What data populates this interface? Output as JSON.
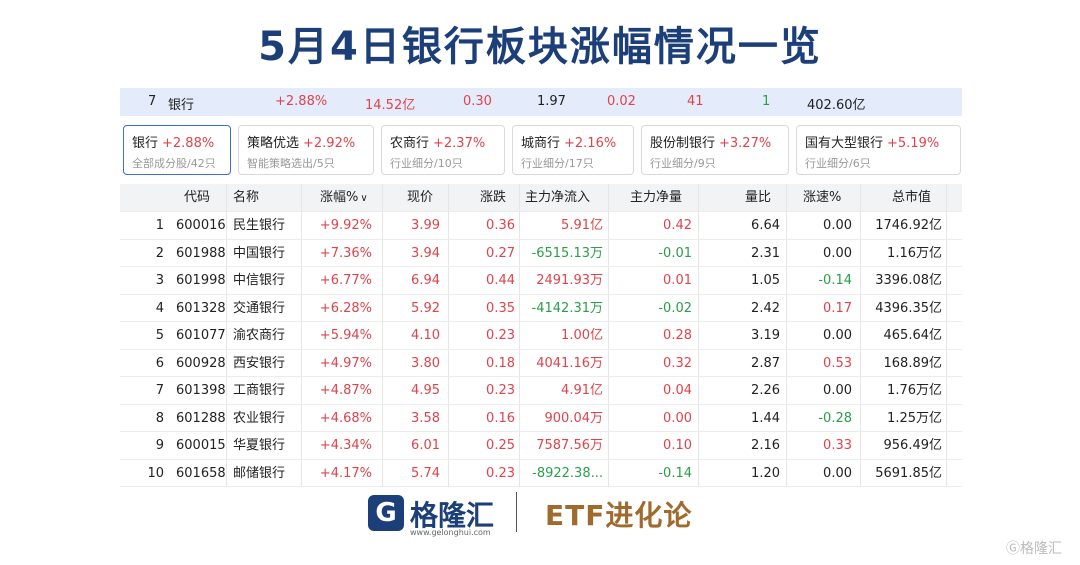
{
  "title": "5月4日银行板块涨幅情况一览",
  "sector_summary": {
    "rank": "7",
    "name": "银行",
    "change_pct": "+2.88%",
    "amount": "14.52亿",
    "v1": "0.30",
    "v2": "1.97",
    "v3": "0.02",
    "v4": "41",
    "v5": "1",
    "v6": "402.60亿"
  },
  "chips": [
    {
      "name": "银行",
      "pct": "+2.88%",
      "sub": "全部成分股/42只"
    },
    {
      "name": "策略优选",
      "pct": "+2.92%",
      "sub": "智能策略选出/5只"
    },
    {
      "name": "农商行",
      "pct": "+2.37%",
      "sub": "行业细分/10只"
    },
    {
      "name": "城商行",
      "pct": "+2.16%",
      "sub": "行业细分/17只"
    },
    {
      "name": "股份制银行",
      "pct": "+3.27%",
      "sub": "行业细分/9只"
    },
    {
      "name": "国有大型银行",
      "pct": "+5.19%",
      "sub": "行业细分/6只"
    }
  ],
  "table": {
    "headers": [
      "代码",
      "名称",
      "涨幅%",
      "现价",
      "涨跌",
      "主力净流入",
      "主力净量",
      "量比",
      "涨速%",
      "总市值"
    ],
    "rows": [
      {
        "no": "1",
        "code": "600016",
        "name": "民生银行",
        "pct": "+9.92%",
        "price": "3.99",
        "chg": "0.36",
        "inflow": "5.91亿",
        "net": "0.42",
        "vr": "6.64",
        "speed": "0.00",
        "cap": "1746.92亿"
      },
      {
        "no": "2",
        "code": "601988",
        "name": "中国银行",
        "pct": "+7.36%",
        "price": "3.94",
        "chg": "0.27",
        "inflow": "-6515.13万",
        "net": "-0.01",
        "vr": "2.31",
        "speed": "0.00",
        "cap": "1.16万亿"
      },
      {
        "no": "3",
        "code": "601998",
        "name": "中信银行",
        "pct": "+6.77%",
        "price": "6.94",
        "chg": "0.44",
        "inflow": "2491.93万",
        "net": "0.01",
        "vr": "1.05",
        "speed": "-0.14",
        "cap": "3396.08亿"
      },
      {
        "no": "4",
        "code": "601328",
        "name": "交通银行",
        "pct": "+6.28%",
        "price": "5.92",
        "chg": "0.35",
        "inflow": "-4142.31万",
        "net": "-0.02",
        "vr": "2.42",
        "speed": "0.17",
        "cap": "4396.35亿"
      },
      {
        "no": "5",
        "code": "601077",
        "name": "渝农商行",
        "pct": "+5.94%",
        "price": "4.10",
        "chg": "0.23",
        "inflow": "1.00亿",
        "net": "0.28",
        "vr": "3.19",
        "speed": "0.00",
        "cap": "465.64亿"
      },
      {
        "no": "6",
        "code": "600928",
        "name": "西安银行",
        "pct": "+4.97%",
        "price": "3.80",
        "chg": "0.18",
        "inflow": "4041.16万",
        "net": "0.32",
        "vr": "2.87",
        "speed": "0.53",
        "cap": "168.89亿"
      },
      {
        "no": "7",
        "code": "601398",
        "name": "工商银行",
        "pct": "+4.87%",
        "price": "4.95",
        "chg": "0.23",
        "inflow": "4.91亿",
        "net": "0.04",
        "vr": "2.26",
        "speed": "0.00",
        "cap": "1.76万亿"
      },
      {
        "no": "8",
        "code": "601288",
        "name": "农业银行",
        "pct": "+4.68%",
        "price": "3.58",
        "chg": "0.16",
        "inflow": "900.04万",
        "net": "0.00",
        "vr": "1.44",
        "speed": "-0.28",
        "cap": "1.25万亿"
      },
      {
        "no": "9",
        "code": "600015",
        "name": "华夏银行",
        "pct": "+4.34%",
        "price": "6.01",
        "chg": "0.25",
        "inflow": "7587.56万",
        "net": "0.10",
        "vr": "2.16",
        "speed": "0.33",
        "cap": "956.49亿"
      },
      {
        "no": "10",
        "code": "601658",
        "name": "邮储银行",
        "pct": "+4.17%",
        "price": "5.74",
        "chg": "0.23",
        "inflow": "-8922.38...",
        "net": "-0.14",
        "vr": "1.20",
        "speed": "0.00",
        "cap": "5691.85亿"
      }
    ]
  },
  "footer": {
    "logo_mark": "G",
    "logo_text": "格隆汇",
    "logo_url": "www.gelonghui.com",
    "etf_text": "ETF进化论",
    "watermark": "Ⓖ格隆汇"
  },
  "colors": {
    "up": "#e0434b",
    "down": "#2a9d4a",
    "title": "#1c3f7a",
    "accent": "#3b6fd6"
  }
}
